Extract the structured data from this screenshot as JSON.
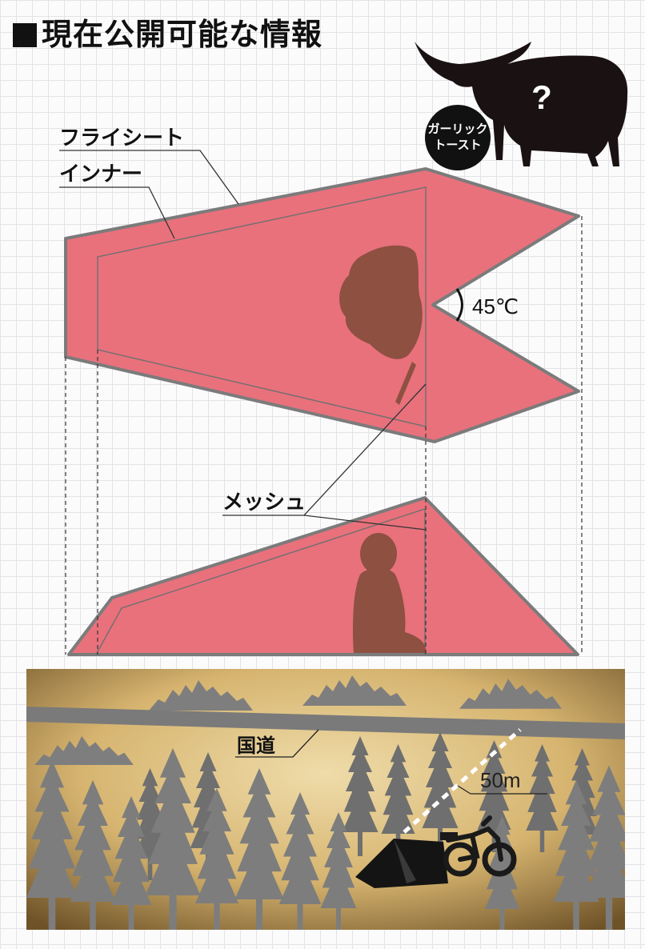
{
  "title": "現在公開可能な情報",
  "badge": {
    "line1": "ガーリック",
    "line2": "トースト",
    "icon": "bull-silhouette-question-icon"
  },
  "labels": {
    "fly_sheet": "フライシート",
    "inner": "インナー",
    "angle": "45℃",
    "mesh": "メッシュ",
    "road": "国道",
    "distance": "50m",
    "question": "?"
  },
  "colors": {
    "tent_fill": "#e8717c",
    "tent_stroke": "#7b7b7b",
    "silhouette_brown": "#8e5040",
    "forest_gray": "#7a7a7a",
    "parchment": "#d4b472"
  },
  "icons": [
    "bull-icon",
    "person-silhouette-icon",
    "tent-icon",
    "motorcycle-icon",
    "tree-icon",
    "mountain-icon"
  ]
}
